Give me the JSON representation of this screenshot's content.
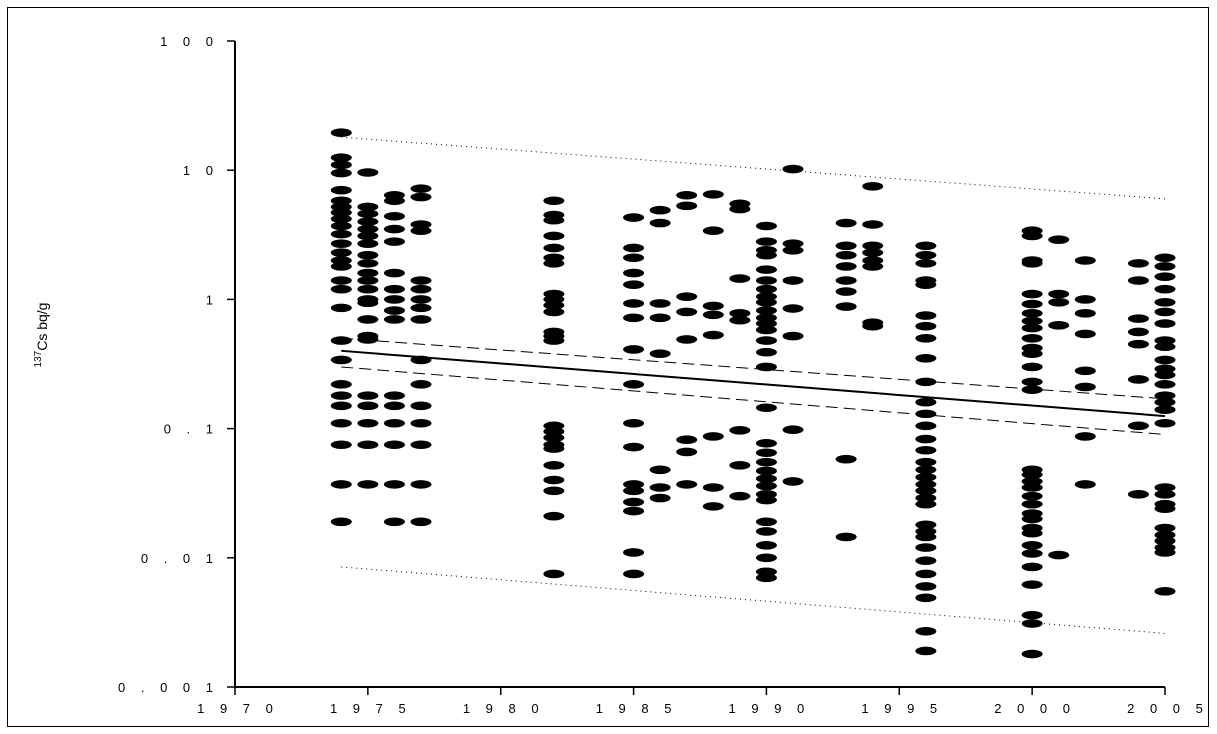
{
  "chart_data": {
    "type": "scatter",
    "title": "",
    "xlabel": "",
    "ylabel": {
      "superscript": "137",
      "text": "Cs bq/g"
    },
    "x_scale": "linear",
    "y_scale": "log",
    "xlim": [
      1970,
      2005
    ],
    "ylim": [
      0.001,
      100
    ],
    "x_ticks": [
      1970,
      1975,
      1980,
      1985,
      1990,
      1995,
      2000,
      2005
    ],
    "x_tick_labels": [
      "1 9 7 0",
      "1 9 7 5",
      "1 9 8 0",
      "1 9 8 5",
      "1 9 9 0",
      "1 9 9 5",
      "2 0 0 0",
      "2 0 0 5"
    ],
    "y_ticks": [
      100,
      10,
      1,
      0.1,
      0.01,
      0.001
    ],
    "y_tick_labels": [
      "1 0 0",
      "1 0",
      "1",
      "0 . 1",
      "0 . 0 1",
      "0 . 0 0 1"
    ],
    "grid": false,
    "legend": "none",
    "colors": {
      "points": "#000000",
      "lines": "#000000",
      "background": "#ffffff"
    },
    "lines": [
      {
        "name": "",
        "style": "solid",
        "x": [
          1974,
          2005
        ],
        "y": [
          0.4,
          0.125
        ]
      },
      {
        "name": "",
        "style": "dashed",
        "x": [
          1974,
          2005
        ],
        "y": [
          0.5,
          0.17
        ]
      },
      {
        "name": "",
        "style": "dashed",
        "x": [
          1974,
          2005
        ],
        "y": [
          0.3,
          0.09
        ]
      },
      {
        "name": "",
        "style": "dotted",
        "x": [
          1974,
          2005
        ],
        "y": [
          18,
          6
        ]
      },
      {
        "name": "",
        "style": "dotted",
        "x": [
          1974,
          2005
        ],
        "y": [
          0.0085,
          0.0026
        ]
      }
    ],
    "series": [
      {
        "x": 1974,
        "values": [
          19.5,
          12.5,
          11.0,
          9.5,
          7.0,
          5.8,
          5.2,
          4.7,
          4.2,
          3.7,
          3.2,
          2.7,
          2.3,
          2.0,
          1.8,
          1.4,
          1.2,
          0.86,
          0.48,
          0.34,
          0.22,
          0.18,
          0.15,
          0.11,
          0.075,
          0.037,
          0.019
        ]
      },
      {
        "x": 1975,
        "values": [
          9.6,
          5.2,
          4.6,
          4.0,
          3.5,
          3.1,
          2.7,
          2.2,
          1.9,
          1.6,
          1.4,
          1.2,
          1.0,
          0.94,
          0.7,
          0.52,
          0.49,
          0.18,
          0.15,
          0.11,
          0.075,
          0.037
        ]
      },
      {
        "x": 1976,
        "values": [
          6.4,
          5.8,
          4.4,
          3.5,
          2.8,
          1.6,
          1.2,
          1.0,
          0.82,
          0.7,
          0.18,
          0.15,
          0.11,
          0.075,
          0.037,
          0.019
        ]
      },
      {
        "x": 1977,
        "values": [
          7.2,
          6.2,
          3.8,
          3.4,
          1.4,
          1.2,
          1.0,
          0.86,
          0.7,
          0.34,
          0.22,
          0.15,
          0.11,
          0.075,
          0.037,
          0.019
        ]
      },
      {
        "x": 1982,
        "values": [
          5.8,
          4.5,
          4.1,
          3.1,
          2.5,
          2.1,
          1.9,
          1.1,
          1.0,
          0.9,
          0.8,
          0.56,
          0.52,
          0.48,
          0.105,
          0.095,
          0.085,
          0.075,
          0.07,
          0.052,
          0.04,
          0.033,
          0.021,
          0.0075
        ]
      },
      {
        "x": 1985,
        "values": [
          4.3,
          2.5,
          2.1,
          1.6,
          1.3,
          0.93,
          0.72,
          0.41,
          0.22,
          0.11,
          0.072,
          0.037,
          0.033,
          0.027,
          0.023,
          0.011,
          0.0075
        ]
      },
      {
        "x": 1986,
        "values": [
          4.9,
          3.9,
          0.93,
          0.72,
          0.38,
          0.048,
          0.035,
          0.029
        ]
      },
      {
        "x": 1987,
        "values": [
          6.4,
          5.3,
          1.05,
          0.8,
          0.49,
          0.082,
          0.066,
          0.037
        ]
      },
      {
        "x": 1988,
        "values": [
          6.5,
          3.4,
          0.89,
          0.76,
          0.53,
          0.087,
          0.035,
          0.025
        ]
      },
      {
        "x": 1989,
        "values": [
          5.5,
          5.0,
          1.45,
          0.78,
          0.69,
          0.097,
          0.052,
          0.03
        ]
      },
      {
        "x": 1990,
        "values": [
          3.7,
          2.8,
          2.4,
          2.2,
          1.7,
          1.4,
          1.2,
          1.05,
          0.95,
          0.82,
          0.72,
          0.65,
          0.58,
          0.48,
          0.39,
          0.3,
          0.145,
          0.077,
          0.065,
          0.055,
          0.047,
          0.041,
          0.036,
          0.031,
          0.028,
          0.019,
          0.016,
          0.0125,
          0.01,
          0.0078,
          0.007
        ]
      },
      {
        "x": 1991,
        "values": [
          10.2,
          2.7,
          2.4,
          1.4,
          0.85,
          0.52,
          0.098,
          0.039
        ]
      },
      {
        "x": 1993,
        "values": [
          3.9,
          2.6,
          2.2,
          1.8,
          1.4,
          1.15,
          0.88,
          0.058,
          0.0145
        ]
      },
      {
        "x": 1994,
        "values": [
          7.5,
          3.8,
          2.6,
          2.3,
          2.0,
          1.8,
          0.66,
          0.62
        ]
      },
      {
        "x": 1996,
        "values": [
          2.6,
          2.2,
          1.9,
          1.4,
          1.3,
          0.75,
          0.62,
          0.5,
          0.35,
          0.23,
          0.16,
          0.13,
          0.105,
          0.083,
          0.068,
          0.055,
          0.048,
          0.042,
          0.037,
          0.033,
          0.029,
          0.026,
          0.018,
          0.016,
          0.0145,
          0.012,
          0.0095,
          0.0075,
          0.006,
          0.0049,
          0.0027,
          0.0019
        ]
      },
      {
        "x": 2000,
        "values": [
          3.4,
          3.1,
          2.0,
          1.9,
          1.1,
          0.92,
          0.78,
          0.68,
          0.6,
          0.5,
          0.42,
          0.38,
          0.3,
          0.23,
          0.2,
          0.048,
          0.044,
          0.039,
          0.035,
          0.03,
          0.026,
          0.022,
          0.02,
          0.017,
          0.0155,
          0.0125,
          0.0108,
          0.0085,
          0.0062,
          0.0036,
          0.0031,
          0.0018
        ]
      },
      {
        "x": 2001,
        "values": [
          2.9,
          1.1,
          0.95,
          0.63,
          0.0105
        ]
      },
      {
        "x": 2002,
        "values": [
          2.0,
          1.0,
          0.78,
          0.54,
          0.28,
          0.21,
          0.087,
          0.037
        ]
      },
      {
        "x": 2004,
        "values": [
          1.9,
          1.4,
          0.71,
          0.56,
          0.45,
          0.24,
          0.105,
          0.031
        ]
      },
      {
        "x": 2005,
        "values": [
          2.1,
          1.8,
          1.5,
          1.2,
          0.95,
          0.8,
          0.65,
          0.48,
          0.43,
          0.34,
          0.29,
          0.26,
          0.22,
          0.18,
          0.16,
          0.14,
          0.11,
          0.035,
          0.031,
          0.026,
          0.024,
          0.017,
          0.015,
          0.0135,
          0.012,
          0.011,
          0.0055
        ]
      }
    ]
  }
}
